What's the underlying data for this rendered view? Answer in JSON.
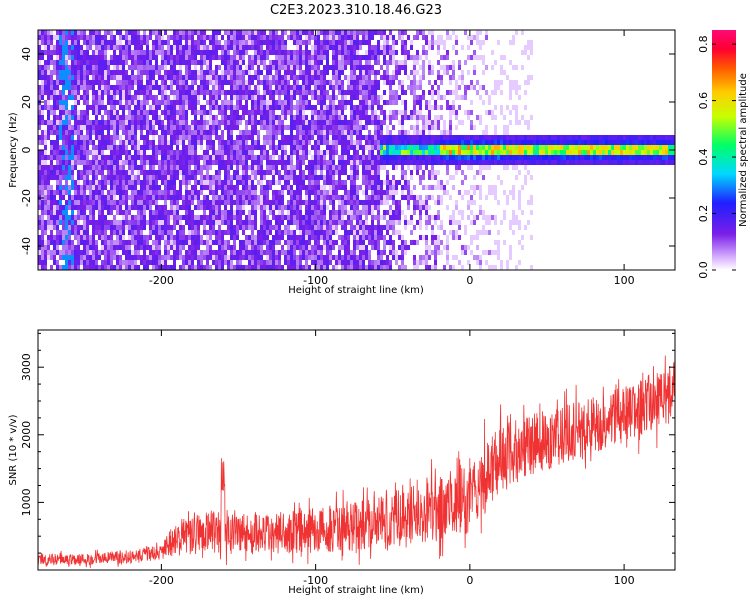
{
  "title": "C2E3.2023.310.18.46.G23",
  "colors": {
    "snr_line": "#f03232",
    "cold": "#7a1fe8",
    "track": "#22d6ff"
  },
  "chart_data": [
    {
      "type": "heatmap",
      "name": "spectrogram",
      "xlabel": "Height of straight line (km)",
      "ylabel": "Frequency (Hz)",
      "xlim": [
        -280,
        133
      ],
      "ylim": [
        -50,
        50
      ],
      "xticks": [
        -200,
        -100,
        0,
        100
      ],
      "yticks": [
        -40,
        -20,
        0,
        20,
        40
      ],
      "colorbar": {
        "label": "Normalized spectral amplitude",
        "range": [
          0.0,
          0.85
        ],
        "ticks": [
          "0.0",
          "0.2",
          "0.4",
          "0.6",
          "0.8"
        ],
        "colormap": "rainbow (white-violet-blue-cyan-green-yellow-orange-red-magenta)"
      },
      "features": {
        "noise_region_x": [
          -280,
          -60
        ],
        "signal_band_center_hz": 1,
        "signal_band_start_x": -60,
        "signal_amplitude_range": [
          0.3,
          0.85
        ],
        "vertical_track_x": [
          -268,
          -258
        ]
      }
    },
    {
      "type": "line",
      "name": "snr",
      "xlabel": "Height of straight line (km)",
      "ylabel": "SNR (10 * v/v)",
      "xlim": [
        -280,
        133
      ],
      "ylim": [
        0,
        3550
      ],
      "xticks": [
        -200,
        -100,
        0,
        100
      ],
      "yticks": [
        1000,
        2000,
        3000
      ],
      "series": [
        {
          "x": [
            -280,
            -250,
            -220,
            -200,
            -190,
            -170,
            -160,
            -140,
            -120,
            -100,
            -80,
            -60,
            -40,
            -20,
            0,
            10,
            20,
            40,
            60,
            80,
            100,
            120,
            133
          ],
          "mean": [
            150,
            160,
            200,
            260,
            480,
            560,
            600,
            520,
            560,
            580,
            620,
            720,
            800,
            900,
            1050,
            1400,
            1650,
            1850,
            2000,
            2150,
            2300,
            2500,
            2650
          ],
          "spread": [
            120,
            120,
            140,
            160,
            400,
            450,
            480,
            420,
            450,
            470,
            500,
            560,
            620,
            680,
            720,
            750,
            700,
            650,
            620,
            600,
            600,
            620,
            650
          ]
        }
      ]
    }
  ]
}
